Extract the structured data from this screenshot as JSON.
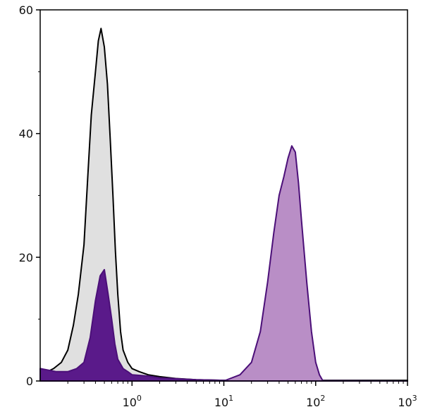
{
  "chart_data": {
    "type": "area",
    "title": "",
    "xlabel": "",
    "ylabel": "",
    "x_scale": "log",
    "xlim": [
      0.1,
      1000
    ],
    "ylim": [
      0,
      60
    ],
    "grid": false,
    "y_ticks": [
      "0",
      "20",
      "40",
      "60"
    ],
    "x_ticks": [
      {
        "value": 1,
        "base": "10",
        "exp": "0"
      },
      {
        "value": 10,
        "base": "10",
        "exp": "1"
      },
      {
        "value": 100,
        "base": "10",
        "exp": "2"
      },
      {
        "value": 1000,
        "base": "10",
        "exp": "3"
      }
    ],
    "series": [
      {
        "fill": "#e0e0e0",
        "stroke": "#000000",
        "x": [
          0.1,
          0.12,
          0.14,
          0.17,
          0.2,
          0.23,
          0.26,
          0.3,
          0.33,
          0.36,
          0.4,
          0.43,
          0.46,
          0.5,
          0.54,
          0.58,
          0.62,
          0.66,
          0.7,
          0.75,
          0.8,
          0.9,
          1.0,
          1.2,
          1.5,
          2,
          3,
          5,
          10,
          20,
          30,
          50,
          100,
          200,
          300,
          500,
          1000
        ],
        "y": [
          1,
          1.5,
          2,
          3,
          5,
          9,
          14,
          22,
          33,
          43,
          50,
          55,
          57,
          54,
          48,
          39,
          30,
          21,
          14,
          8,
          5,
          3,
          2,
          1.5,
          1,
          0.7,
          0.4,
          0.2,
          0.1,
          0.1,
          0.1,
          0.1,
          0.1,
          0.1,
          0.1,
          0.1,
          0.1
        ]
      },
      {
        "fill": "#5a1a8a",
        "stroke": "#4b0f78",
        "x": [
          0.1,
          0.15,
          0.2,
          0.25,
          0.3,
          0.35,
          0.4,
          0.45,
          0.5,
          0.55,
          0.6,
          0.65,
          0.7,
          0.8,
          0.9,
          1.0,
          1.5,
          2,
          5,
          10,
          1000
        ],
        "y": [
          2,
          1.5,
          1.5,
          2,
          3,
          7,
          13,
          17,
          18,
          14,
          10,
          6,
          3.5,
          2,
          1.5,
          1,
          0.8,
          0.5,
          0.2,
          0.1,
          0
        ]
      },
      {
        "fill": "#b98ec6",
        "stroke": "#4b0f78",
        "x": [
          10,
          15,
          20,
          25,
          30,
          35,
          40,
          45,
          50,
          55,
          60,
          65,
          70,
          80,
          90,
          100,
          110,
          120
        ],
        "y": [
          0,
          1,
          3,
          8,
          16,
          24,
          30,
          33,
          36,
          38,
          37,
          32,
          26,
          16,
          8,
          3,
          1,
          0
        ]
      }
    ]
  }
}
